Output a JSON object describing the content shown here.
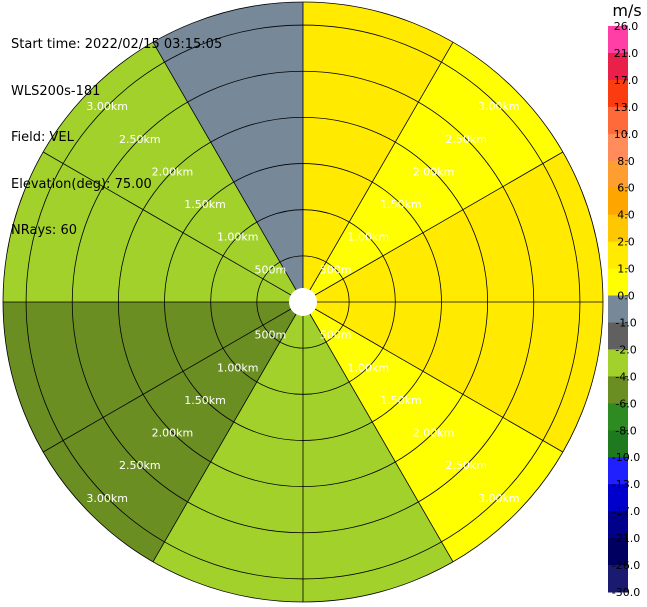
{
  "header": {
    "start_time_label": "Start time:",
    "start_time": "2022/02/15 03:15:05",
    "instrument": "WLS200s-181",
    "field_label": "Field:",
    "field": "VEL",
    "elevation_label": "Elevation(deg):",
    "elevation": "75.00",
    "nrays_label": "NRays:",
    "nrays": "60"
  },
  "chart_data": {
    "type": "heatmap",
    "projection": "polar-ppi",
    "field": "VEL",
    "units": "m/s",
    "range_rings_km": [
      0.5,
      1.0,
      1.5,
      2.0,
      2.5,
      3.0
    ],
    "range_ring_labels": [
      "500m",
      "1.00km",
      "1.50km",
      "2.00km",
      "2.50km",
      "3.00km"
    ],
    "max_range_km": 3.25,
    "spoke_step_deg": 30,
    "colorbar": {
      "title": "m/s",
      "tick_labels": [
        "26.0",
        "21.0",
        "17.0",
        "13.0",
        "10.0",
        "8.0",
        "6.0",
        "4.0",
        "2.0",
        "1.0",
        "0.0",
        "-1.0",
        "-2.0",
        "-4.0",
        "-6.0",
        "-8.0",
        "-10.0",
        "-13.0",
        "-17.0",
        "-21.0",
        "-26.0",
        "-30.0"
      ],
      "bin_colors": [
        "#ff3fa6",
        "#e8204a",
        "#fa3c10",
        "#ff6a3a",
        "#ff8c5a",
        "#ff9e30",
        "#ffa500",
        "#ffc700",
        "#ffea00",
        "#ffff00",
        "#778899",
        "#606060",
        "#a3d12c",
        "#6b8e23",
        "#2e8b22",
        "#1f7a1f",
        "#2020ff",
        "#0000cd",
        "#00008b",
        "#000060",
        "#1a1a70"
      ]
    },
    "sectors": [
      {
        "az_from": 0,
        "az_to": 30,
        "value": 2.0
      },
      {
        "az_from": 30,
        "az_to": 60,
        "value": 1.0
      },
      {
        "az_from": 60,
        "az_to": 90,
        "value": 1.5
      },
      {
        "az_from": 90,
        "az_to": 120,
        "value": 1.5
      },
      {
        "az_from": 120,
        "az_to": 150,
        "value": 0.2
      },
      {
        "az_from": 150,
        "az_to": 180,
        "value": -2.5
      },
      {
        "az_from": 180,
        "az_to": 210,
        "value": -3.0
      },
      {
        "az_from": 210,
        "az_to": 240,
        "value": -5.0
      },
      {
        "az_from": 240,
        "az_to": 270,
        "value": -4.5
      },
      {
        "az_from": 270,
        "az_to": 300,
        "value": -3.0
      },
      {
        "az_from": 300,
        "az_to": 330,
        "value": -2.5
      },
      {
        "az_from": 330,
        "az_to": 360,
        "value": 0.0
      }
    ]
  }
}
